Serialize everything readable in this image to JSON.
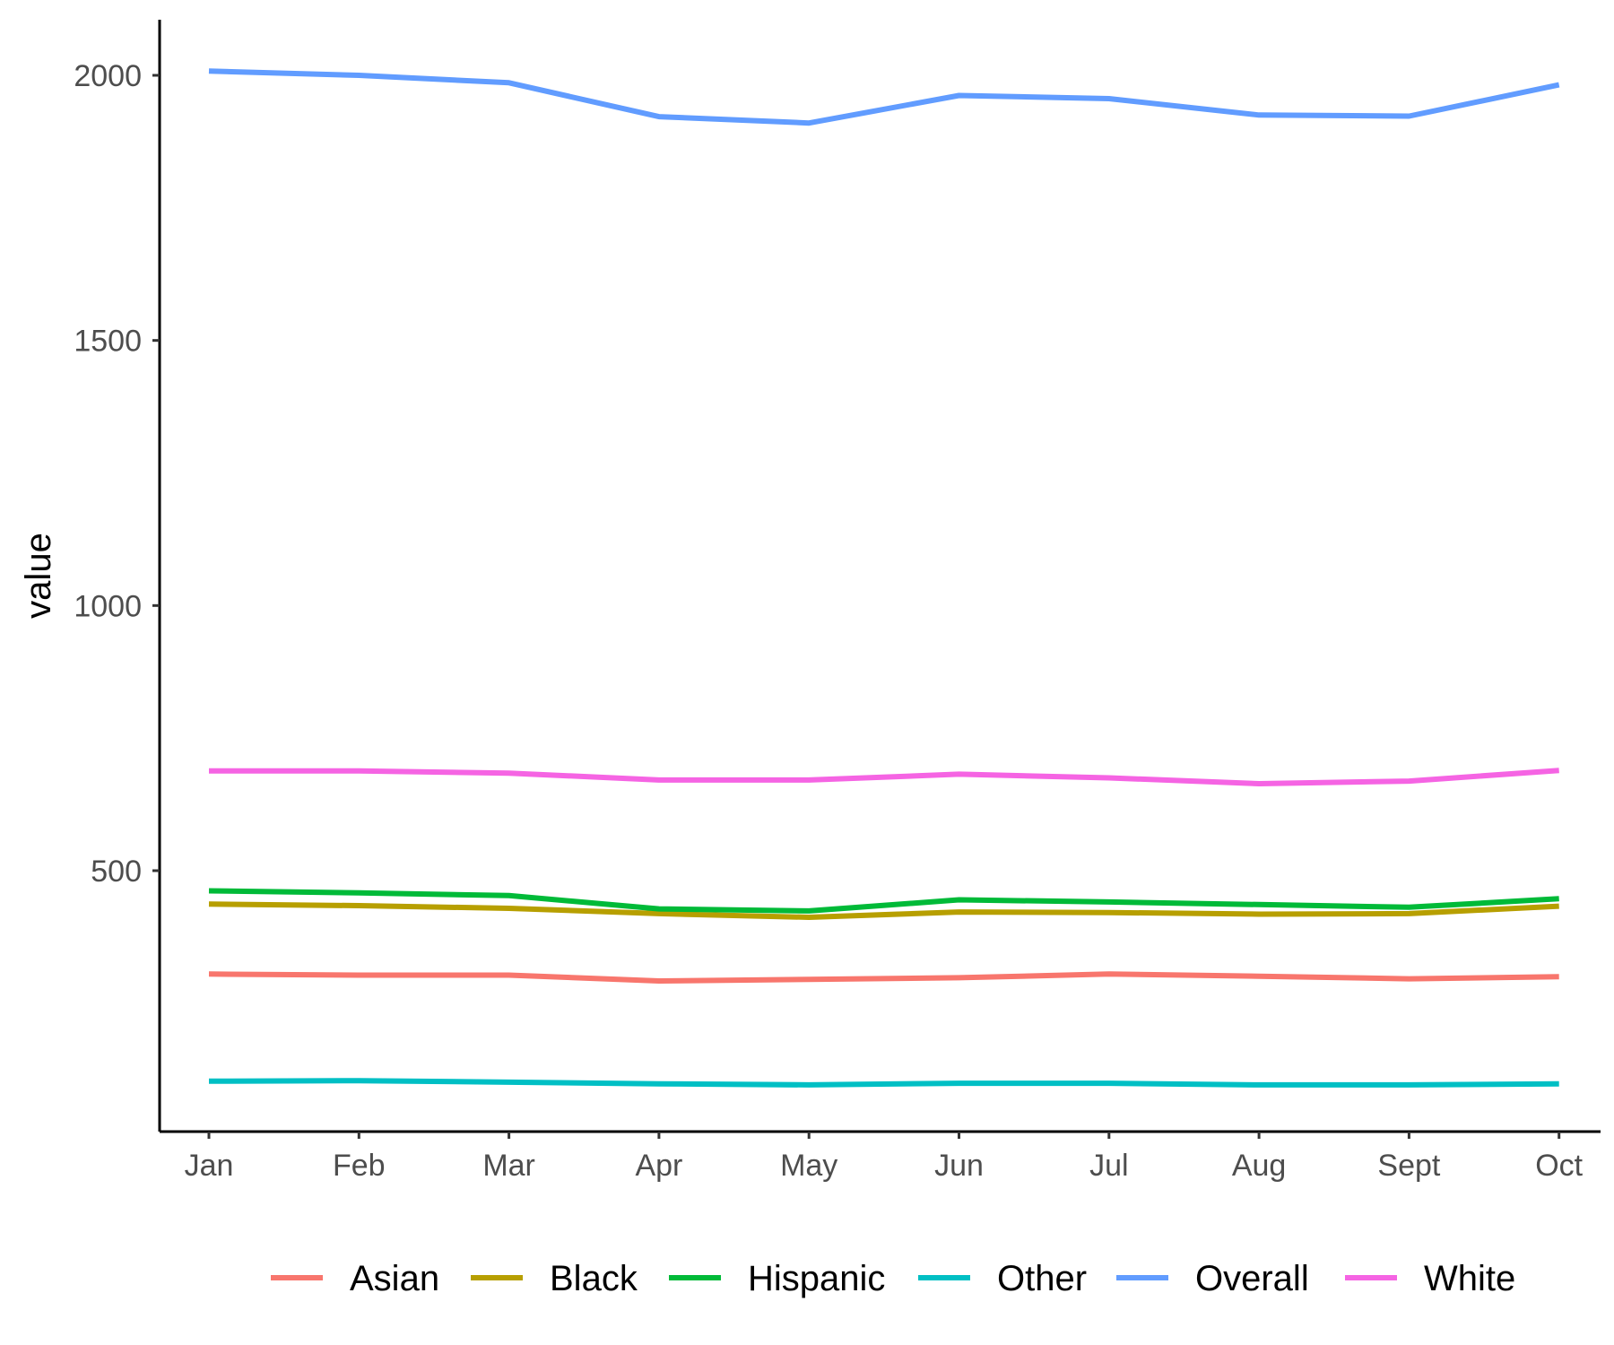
{
  "chart_data": {
    "type": "line",
    "title": "",
    "xlabel": "",
    "ylabel": "value",
    "categories": [
      "Jan",
      "Feb",
      "Mar",
      "Apr",
      "May",
      "Jun",
      "Jul",
      "Aug",
      "Sept",
      "Oct"
    ],
    "yticks": [
      500,
      1000,
      1500,
      2000
    ],
    "ylim": [
      55,
      2100
    ],
    "grid": false,
    "legend_position": "bottom",
    "series": [
      {
        "name": "Asian",
        "color": "#F8766D",
        "values": [
          305,
          303,
          303,
          292,
          295,
          298,
          305,
          301,
          296,
          300
        ]
      },
      {
        "name": "Black",
        "color": "#B79F00",
        "values": [
          437,
          434,
          429,
          419,
          412,
          422,
          421,
          418,
          419,
          433
        ]
      },
      {
        "name": "Hispanic",
        "color": "#00BA38",
        "values": [
          462,
          458,
          453,
          428,
          424,
          445,
          441,
          436,
          431,
          447
        ]
      },
      {
        "name": "Other",
        "color": "#00BFC4",
        "values": [
          103,
          104,
          101,
          98,
          96,
          99,
          99,
          96,
          96,
          98
        ]
      },
      {
        "name": "Overall",
        "color": "#619CFF",
        "values": [
          2008,
          2000,
          1986,
          1922,
          1910,
          1962,
          1956,
          1925,
          1923,
          1982
        ]
      },
      {
        "name": "White",
        "color": "#F564E3",
        "values": [
          688,
          688,
          684,
          671,
          671,
          682,
          675,
          664,
          669,
          689
        ]
      }
    ]
  }
}
